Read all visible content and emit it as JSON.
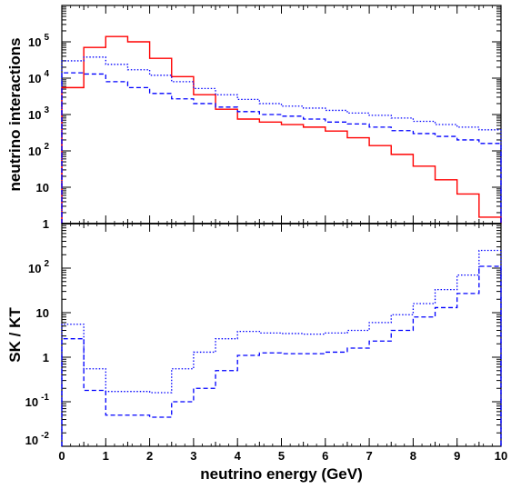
{
  "chart_data": [
    {
      "type": "line",
      "style": "histogram",
      "ylabel": "neutrino interactions",
      "y_scale": "log",
      "ylim": [
        1,
        1000000
      ],
      "xlim": [
        0,
        10
      ],
      "y_tick_labels": [
        {
          "base": "1",
          "exp": ""
        },
        {
          "base": "10",
          "exp": ""
        },
        {
          "base": "10",
          "exp": "2"
        },
        {
          "base": "10",
          "exp": "3"
        },
        {
          "base": "10",
          "exp": "4"
        },
        {
          "base": "10",
          "exp": "5"
        }
      ],
      "bin_edges": [
        0,
        0.5,
        1,
        1.5,
        2,
        2.5,
        3,
        3.5,
        4,
        4.5,
        5,
        5.5,
        6,
        6.5,
        7,
        7.5,
        8,
        8.5,
        9,
        9.5,
        10
      ],
      "series": [
        {
          "color": "#ff0000",
          "line_style": "solid",
          "values": [
            5500,
            70000,
            140000,
            100000,
            35000,
            11000,
            3500,
            1400,
            750,
            620,
            530,
            450,
            350,
            230,
            140,
            80,
            38,
            16,
            6.5,
            1.5
          ]
        },
        {
          "color": "#0000ff",
          "line_style": "dotted",
          "values": [
            30000,
            38000,
            24000,
            17000,
            12000,
            8000,
            5200,
            3500,
            2600,
            2000,
            1700,
            1500,
            1300,
            1100,
            950,
            800,
            650,
            530,
            450,
            380
          ]
        },
        {
          "color": "#0000ff",
          "line_style": "dashed",
          "values": [
            14000,
            13000,
            8000,
            5500,
            3800,
            2700,
            2000,
            1600,
            1200,
            1000,
            900,
            750,
            620,
            550,
            450,
            360,
            300,
            250,
            200,
            160
          ]
        }
      ]
    },
    {
      "type": "line",
      "style": "histogram",
      "ylabel": "SK / KT",
      "xlabel": "neutrino energy (GeV)",
      "y_scale": "log",
      "ylim": [
        0.01,
        1000
      ],
      "xlim": [
        0,
        10
      ],
      "x_tick_labels": [
        "0",
        "1",
        "2",
        "3",
        "4",
        "5",
        "6",
        "7",
        "8",
        "9",
        "10"
      ],
      "y_tick_labels": [
        {
          "base": "10",
          "exp": "-2"
        },
        {
          "base": "10",
          "exp": "-1"
        },
        {
          "base": "1",
          "exp": ""
        },
        {
          "base": "10",
          "exp": ""
        },
        {
          "base": "10",
          "exp": "2"
        }
      ],
      "bin_edges": [
        0,
        0.5,
        1,
        1.5,
        2,
        2.5,
        3,
        3.5,
        4,
        4.5,
        5,
        5.5,
        6,
        6.5,
        7,
        7.5,
        8,
        8.5,
        9,
        9.5,
        10
      ],
      "series": [
        {
          "color": "#0000ff",
          "line_style": "dotted",
          "values": [
            5.5,
            0.55,
            0.17,
            0.17,
            0.16,
            0.55,
            1.3,
            2.6,
            3.8,
            3.5,
            3.4,
            3.3,
            3.5,
            4.0,
            6.0,
            9.0,
            16,
            33,
            70,
            250
          ]
        },
        {
          "color": "#0000ff",
          "line_style": "dashed",
          "values": [
            2.6,
            0.18,
            0.05,
            0.05,
            0.045,
            0.1,
            0.2,
            0.5,
            1.1,
            1.25,
            1.2,
            1.2,
            1.3,
            1.6,
            2.3,
            4.0,
            8.0,
            13,
            27,
            110
          ]
        }
      ]
    }
  ]
}
